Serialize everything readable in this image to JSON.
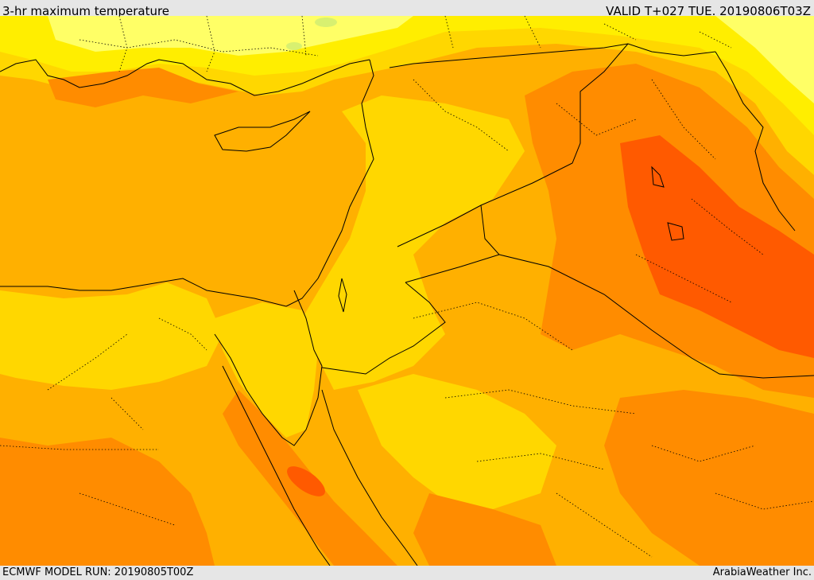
{
  "header": {
    "title": "3-hr maximum temperature",
    "valid": "VALID T+027 TUE. 20190806T03Z"
  },
  "footer": {
    "model_run": "ECMWF MODEL RUN: 20190805T00Z",
    "credit": "ArabiaWeather Inc."
  },
  "palette": {
    "pale_yellow": "#ffff66",
    "yellow": "#ffee00",
    "gold": "#ffd700",
    "light_orange": "#ffb000",
    "orange": "#ff8c00",
    "dark_orange": "#ff5a00",
    "land_pale_green": "#d8f070",
    "border_line": "#000000"
  }
}
